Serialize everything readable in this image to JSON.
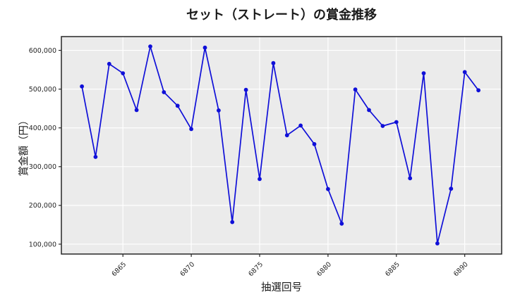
{
  "chart_data": {
    "type": "line",
    "title": "セット（ストレート）の賞金推移",
    "xlabel": "抽選回号",
    "ylabel": "賞金額（円）",
    "x": [
      6862,
      6863,
      6864,
      6865,
      6866,
      6867,
      6868,
      6869,
      6870,
      6871,
      6872,
      6873,
      6874,
      6875,
      6876,
      6877,
      6878,
      6879,
      6880,
      6881,
      6882,
      6883,
      6884,
      6885,
      6886,
      6887,
      6888,
      6889,
      6890,
      6891
    ],
    "values": [
      507000,
      325000,
      565000,
      541000,
      446000,
      610000,
      492000,
      457000,
      397000,
      607000,
      445000,
      157000,
      498000,
      268000,
      567000,
      381000,
      406000,
      358000,
      242000,
      153000,
      499000,
      446000,
      405000,
      415000,
      270000,
      541000,
      102000,
      243000,
      544000,
      497000
    ],
    "x_ticks": [
      6865,
      6870,
      6875,
      6880,
      6885,
      6890
    ],
    "y_ticks": [
      100000,
      200000,
      300000,
      400000,
      500000,
      600000
    ],
    "xlim": [
      6860.5,
      6892.7
    ],
    "ylim": [
      74500,
      635500
    ],
    "grid": true,
    "legend": "none",
    "colors": {
      "line": "#0f0fd8",
      "marker": "#0f0fd8",
      "plot_bg": "#ebebeb",
      "grid": "#ffffff",
      "spine": "#262626",
      "tick": "#262626"
    }
  }
}
